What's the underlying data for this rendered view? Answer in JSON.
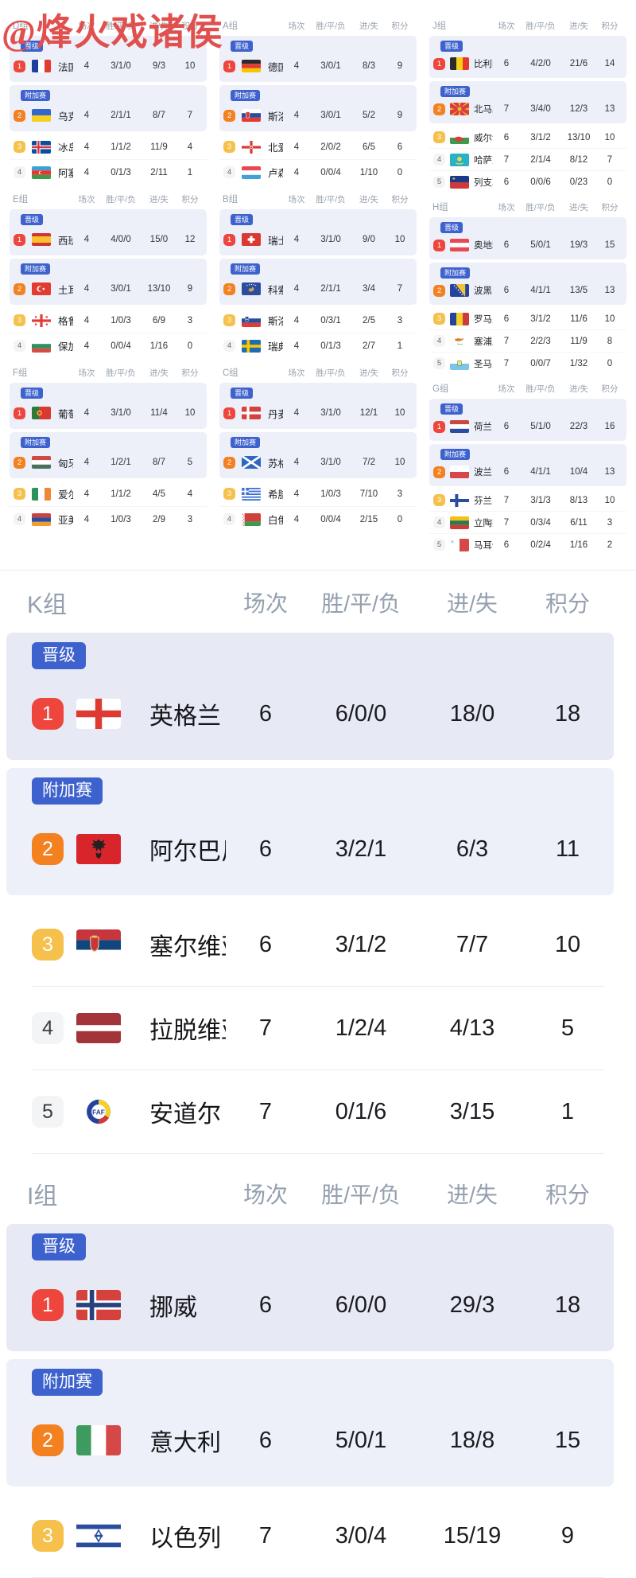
{
  "watermark": "@烽火戏诸侯",
  "labels": {
    "promoted": "晋级",
    "playoff": "附加赛",
    "columns": [
      "场次",
      "胜/平/负",
      "进/失",
      "积分"
    ]
  },
  "colors": {
    "badge_blue": "#3d61cd",
    "rank1_red": "#ee453d",
    "rank2_orange": "#f48120",
    "rank3_yellow": "#f5c04b",
    "zone_bg": "#edf0f9",
    "watermark_red": "#e0504e"
  },
  "small_group_columns": [
    [
      {
        "name": "D组",
        "teams": [
          {
            "rank": 1,
            "zone": "promoted",
            "flag": "fr",
            "team": "法国",
            "played": "4",
            "wdl": "3/1/0",
            "goals": "9/3",
            "points": "10"
          },
          {
            "rank": 2,
            "zone": "playoff",
            "flag": "ua",
            "team": "乌克兰",
            "played": "4",
            "wdl": "2/1/1",
            "goals": "8/7",
            "points": "7"
          },
          {
            "rank": 3,
            "flag": "is",
            "team": "冰岛",
            "played": "4",
            "wdl": "1/1/2",
            "goals": "11/9",
            "points": "4"
          },
          {
            "rank": 4,
            "flag": "az",
            "team": "阿塞拜疆",
            "played": "4",
            "wdl": "0/1/3",
            "goals": "2/11",
            "points": "1"
          }
        ]
      },
      {
        "name": "E组",
        "teams": [
          {
            "rank": 1,
            "zone": "promoted",
            "flag": "es",
            "team": "西班牙",
            "played": "4",
            "wdl": "4/0/0",
            "goals": "15/0",
            "points": "12"
          },
          {
            "rank": 2,
            "zone": "playoff",
            "flag": "tr",
            "team": "土耳其",
            "played": "4",
            "wdl": "3/0/1",
            "goals": "13/10",
            "points": "9"
          },
          {
            "rank": 3,
            "flag": "ge",
            "team": "格鲁吉亚",
            "played": "4",
            "wdl": "1/0/3",
            "goals": "6/9",
            "points": "3"
          },
          {
            "rank": 4,
            "flag": "bg",
            "team": "保加利亚",
            "played": "4",
            "wdl": "0/0/4",
            "goals": "1/16",
            "points": "0"
          }
        ]
      },
      {
        "name": "F组",
        "teams": [
          {
            "rank": 1,
            "zone": "promoted",
            "flag": "pt",
            "team": "葡萄牙",
            "played": "4",
            "wdl": "3/1/0",
            "goals": "11/4",
            "points": "10"
          },
          {
            "rank": 2,
            "zone": "playoff",
            "flag": "hu",
            "team": "匈牙利",
            "played": "4",
            "wdl": "1/2/1",
            "goals": "8/7",
            "points": "5"
          },
          {
            "rank": 3,
            "flag": "ie",
            "team": "爱尔兰",
            "played": "4",
            "wdl": "1/1/2",
            "goals": "4/5",
            "points": "4"
          },
          {
            "rank": 4,
            "flag": "am",
            "team": "亚美尼亚",
            "played": "4",
            "wdl": "1/0/3",
            "goals": "2/9",
            "points": "3"
          }
        ]
      }
    ],
    [
      {
        "name": "A组",
        "teams": [
          {
            "rank": 1,
            "zone": "promoted",
            "flag": "de",
            "team": "德国",
            "played": "4",
            "wdl": "3/0/1",
            "goals": "8/3",
            "points": "9"
          },
          {
            "rank": 2,
            "zone": "playoff",
            "flag": "sk",
            "team": "斯洛伐克",
            "played": "4",
            "wdl": "3/0/1",
            "goals": "5/2",
            "points": "9"
          },
          {
            "rank": 3,
            "flag": "nir",
            "team": "北爱尔兰",
            "played": "4",
            "wdl": "2/0/2",
            "goals": "6/5",
            "points": "6"
          },
          {
            "rank": 4,
            "flag": "lu",
            "team": "卢森堡",
            "played": "4",
            "wdl": "0/0/4",
            "goals": "1/10",
            "points": "0"
          }
        ]
      },
      {
        "name": "B组",
        "teams": [
          {
            "rank": 1,
            "zone": "promoted",
            "flag": "ch",
            "team": "瑞士",
            "played": "4",
            "wdl": "3/1/0",
            "goals": "9/0",
            "points": "10"
          },
          {
            "rank": 2,
            "zone": "playoff",
            "flag": "xk",
            "team": "科索沃",
            "played": "4",
            "wdl": "2/1/1",
            "goals": "3/4",
            "points": "7"
          },
          {
            "rank": 3,
            "flag": "si",
            "team": "斯洛文尼亚",
            "played": "4",
            "wdl": "0/3/1",
            "goals": "2/5",
            "points": "3"
          },
          {
            "rank": 4,
            "flag": "se",
            "team": "瑞典",
            "played": "4",
            "wdl": "0/1/3",
            "goals": "2/7",
            "points": "1"
          }
        ]
      },
      {
        "name": "C组",
        "teams": [
          {
            "rank": 1,
            "zone": "promoted",
            "flag": "dk",
            "team": "丹麦",
            "played": "4",
            "wdl": "3/1/0",
            "goals": "12/1",
            "points": "10"
          },
          {
            "rank": 2,
            "zone": "playoff",
            "flag": "sct",
            "team": "苏格兰",
            "played": "4",
            "wdl": "3/1/0",
            "goals": "7/2",
            "points": "10"
          },
          {
            "rank": 3,
            "flag": "gr",
            "team": "希腊",
            "played": "4",
            "wdl": "1/0/3",
            "goals": "7/10",
            "points": "3"
          },
          {
            "rank": 4,
            "flag": "by",
            "team": "白俄罗斯",
            "played": "4",
            "wdl": "0/0/4",
            "goals": "2/15",
            "points": "0"
          }
        ]
      }
    ],
    [
      {
        "name": "J组",
        "teams": [
          {
            "rank": 1,
            "zone": "promoted",
            "flag": "be",
            "team": "比利时",
            "played": "6",
            "wdl": "4/2/0",
            "goals": "21/6",
            "points": "14"
          },
          {
            "rank": 2,
            "zone": "playoff",
            "flag": "mk",
            "team": "北马其顿",
            "played": "7",
            "wdl": "3/4/0",
            "goals": "12/3",
            "points": "13"
          },
          {
            "rank": 3,
            "flag": "wal",
            "team": "威尔士",
            "played": "6",
            "wdl": "3/1/2",
            "goals": "13/10",
            "points": "10"
          },
          {
            "rank": 4,
            "flag": "kz",
            "team": "哈萨克斯坦",
            "played": "7",
            "wdl": "2/1/4",
            "goals": "8/12",
            "points": "7"
          },
          {
            "rank": 5,
            "flag": "li",
            "team": "列支敦士登",
            "played": "6",
            "wdl": "0/0/6",
            "goals": "0/23",
            "points": "0"
          }
        ]
      },
      {
        "name": "H组",
        "teams": [
          {
            "rank": 1,
            "zone": "promoted",
            "flag": "at",
            "team": "奥地利",
            "played": "6",
            "wdl": "5/0/1",
            "goals": "19/3",
            "points": "15"
          },
          {
            "rank": 2,
            "zone": "playoff",
            "flag": "ba",
            "team": "波黑",
            "played": "6",
            "wdl": "4/1/1",
            "goals": "13/5",
            "points": "13"
          },
          {
            "rank": 3,
            "flag": "ro",
            "team": "罗马尼亚",
            "played": "6",
            "wdl": "3/1/2",
            "goals": "11/6",
            "points": "10"
          },
          {
            "rank": 4,
            "flag": "cy",
            "team": "塞浦路斯",
            "played": "7",
            "wdl": "2/2/3",
            "goals": "11/9",
            "points": "8"
          },
          {
            "rank": 5,
            "flag": "sm",
            "team": "圣马力诺",
            "played": "7",
            "wdl": "0/0/7",
            "goals": "1/32",
            "points": "0"
          }
        ]
      },
      {
        "name": "G组",
        "teams": [
          {
            "rank": 1,
            "zone": "promoted",
            "flag": "nl",
            "team": "荷兰",
            "played": "6",
            "wdl": "5/1/0",
            "goals": "22/3",
            "points": "16"
          },
          {
            "rank": 2,
            "zone": "playoff",
            "flag": "pl",
            "team": "波兰",
            "played": "6",
            "wdl": "4/1/1",
            "goals": "10/4",
            "points": "13"
          },
          {
            "rank": 3,
            "flag": "fi",
            "team": "芬兰",
            "played": "7",
            "wdl": "3/1/3",
            "goals": "8/13",
            "points": "10"
          },
          {
            "rank": 4,
            "flag": "lt",
            "team": "立陶宛",
            "played": "7",
            "wdl": "0/3/4",
            "goals": "6/11",
            "points": "3"
          },
          {
            "rank": 5,
            "flag": "mt",
            "team": "马耳他",
            "played": "6",
            "wdl": "0/2/4",
            "goals": "1/16",
            "points": "2"
          }
        ]
      }
    ]
  ],
  "big_groups": [
    {
      "name": "K组",
      "teams": [
        {
          "rank": 1,
          "zone": "promoted",
          "flag": "eng",
          "team": "英格兰",
          "played": "6",
          "wdl": "6/0/0",
          "goals": "18/0",
          "points": "18"
        },
        {
          "rank": 2,
          "zone": "playoff",
          "flag": "al",
          "team": "阿尔巴尼亚",
          "played": "6",
          "wdl": "3/2/1",
          "goals": "6/3",
          "points": "11"
        },
        {
          "rank": 3,
          "flag": "rs",
          "team": "塞尔维亚",
          "played": "6",
          "wdl": "3/1/2",
          "goals": "7/7",
          "points": "10"
        },
        {
          "rank": 4,
          "flag": "lv",
          "team": "拉脱维亚",
          "played": "7",
          "wdl": "1/2/4",
          "goals": "4/13",
          "points": "5"
        },
        {
          "rank": 5,
          "flag": "ad",
          "team": "安道尔",
          "played": "7",
          "wdl": "0/1/6",
          "goals": "3/15",
          "points": "1"
        }
      ]
    },
    {
      "name": "I组",
      "teams": [
        {
          "rank": 1,
          "zone": "promoted",
          "flag": "no",
          "team": "挪威",
          "played": "6",
          "wdl": "6/0/0",
          "goals": "29/3",
          "points": "18"
        },
        {
          "rank": 2,
          "zone": "playoff",
          "flag": "it",
          "team": "意大利",
          "played": "6",
          "wdl": "5/0/1",
          "goals": "18/8",
          "points": "15"
        },
        {
          "rank": 3,
          "flag": "il",
          "team": "以色列",
          "played": "7",
          "wdl": "3/0/4",
          "goals": "15/19",
          "points": "9"
        }
      ]
    }
  ]
}
